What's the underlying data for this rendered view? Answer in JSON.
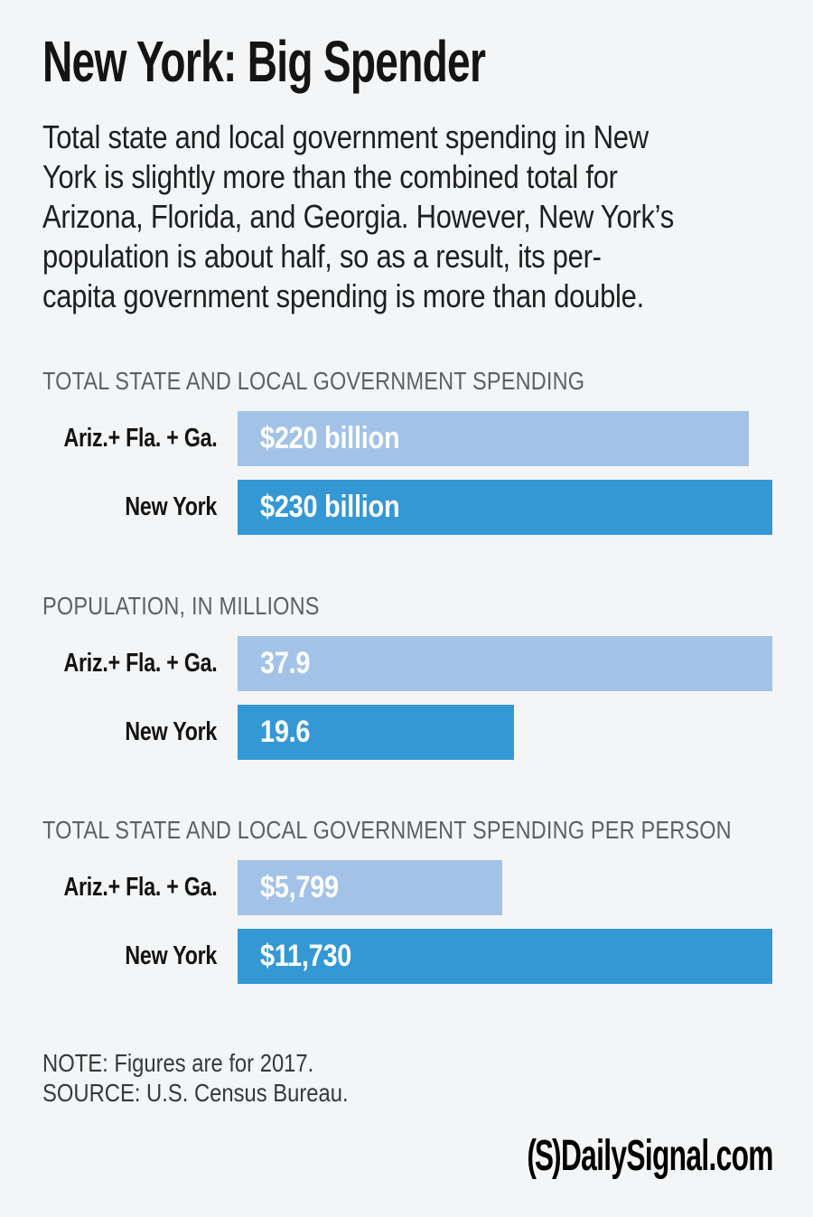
{
  "header": {
    "title": "New York: Big Spender",
    "description_lines": [
      "Total state and local government spending in New",
      "York is slightly more than the combined total for",
      "Arizona, Florida, and Georgia. However, New York’s",
      "population is about half, so as a result, its per-",
      "capita government spending is more than double."
    ]
  },
  "chart_data": [
    {
      "type": "bar",
      "orientation": "horizontal",
      "title": "TOTAL STATE AND LOCAL GOVERNMENT SPENDING",
      "categories": [
        "Ariz.+ Fla. + Ga.",
        "New York"
      ],
      "values": [
        220,
        230
      ],
      "value_labels": [
        "$220 billion",
        "$230 billion"
      ],
      "unit": "billions of dollars",
      "xlim": [
        0,
        230
      ],
      "series_colors": [
        "#a2c3e7",
        "#3498d5"
      ],
      "grid": false,
      "legend": false
    },
    {
      "type": "bar",
      "orientation": "horizontal",
      "title": "POPULATION, IN MILLIONS",
      "categories": [
        "Ariz.+ Fla. + Ga.",
        "New York"
      ],
      "values": [
        37.9,
        19.6
      ],
      "value_labels": [
        "37.9",
        "19.6"
      ],
      "unit": "millions of people",
      "xlim": [
        0,
        37.9
      ],
      "series_colors": [
        "#a2c3e7",
        "#3498d5"
      ],
      "grid": false,
      "legend": false
    },
    {
      "type": "bar",
      "orientation": "horizontal",
      "title": "TOTAL STATE AND LOCAL GOVERNMENT SPENDING PER PERSON",
      "categories": [
        "Ariz.+ Fla. + Ga.",
        "New York"
      ],
      "values": [
        5799,
        11730
      ],
      "value_labels": [
        "$5,799",
        "$11,730"
      ],
      "unit": "dollars per person",
      "xlim": [
        0,
        11730
      ],
      "series_colors": [
        "#a2c3e7",
        "#3498d5"
      ],
      "grid": false,
      "legend": false
    }
  ],
  "footer": {
    "note": "NOTE: Figures are for 2017.",
    "source": "SOURCE: U.S. Census Bureau.",
    "logo_mark": "(S)",
    "logo_text": "DailySignal.com"
  },
  "colors": {
    "background": "#f4f5f6",
    "bar_light": "#a2c3e7",
    "bar_dark": "#3498d5",
    "title_text": "#141414",
    "section_header": "#5e6164",
    "note_text": "#37393a",
    "bar_value_text": "#ffffff"
  }
}
